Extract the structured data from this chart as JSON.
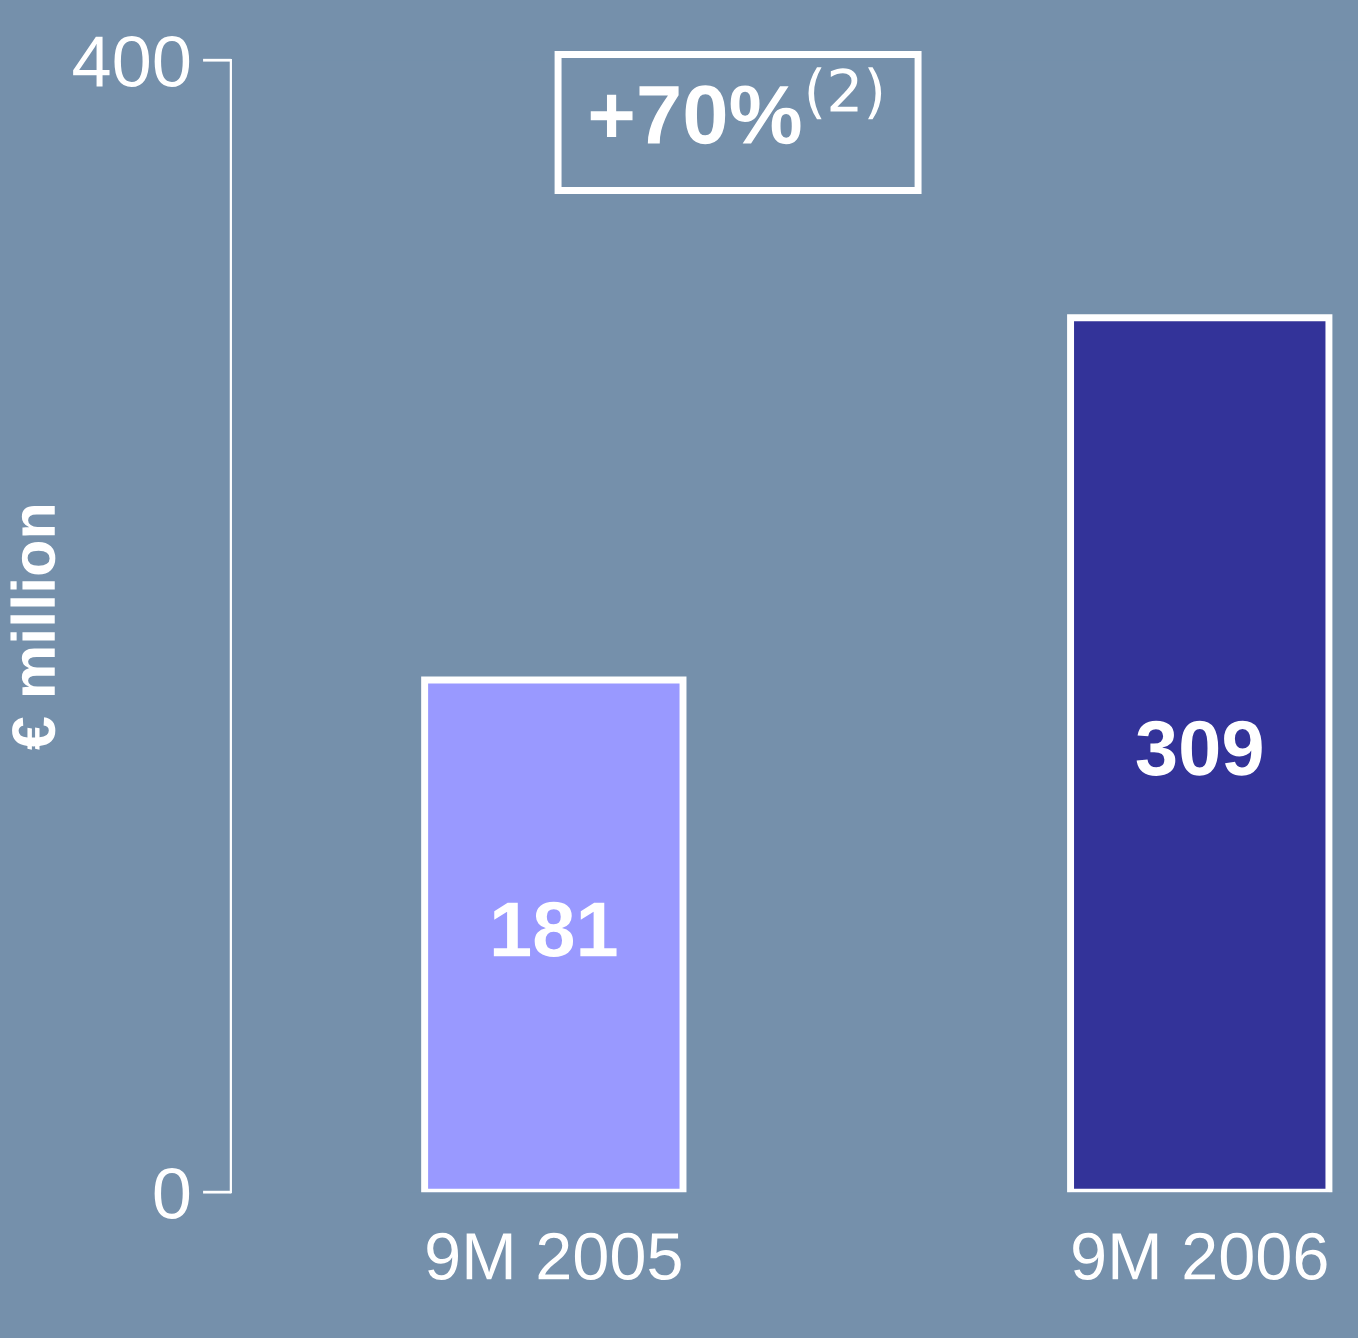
{
  "chart_data": {
    "type": "bar",
    "ylabel": "€ million",
    "categories": [
      "9M 2005",
      "9M 2006"
    ],
    "values": [
      181,
      309
    ],
    "colors": [
      "#9999ff",
      "#333399"
    ],
    "ylim": [
      0,
      400
    ],
    "yticks": [
      0,
      400
    ],
    "data_labels": true,
    "grid": false,
    "legend": false,
    "annotations": [
      "+70%$^{(2)}$"
    ]
  }
}
